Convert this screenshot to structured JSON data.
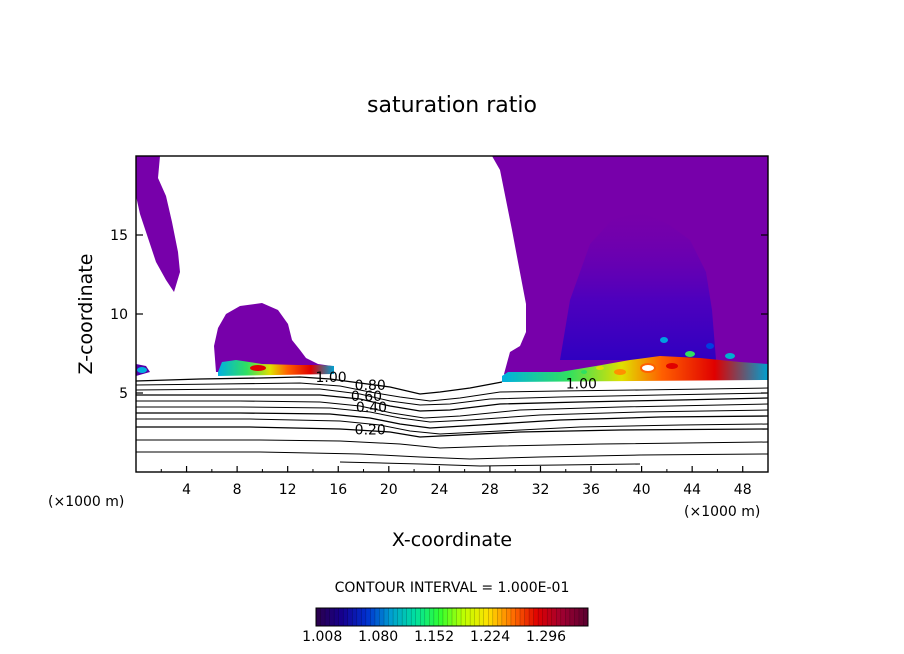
{
  "chart_data": {
    "type": "contour",
    "title": "saturation ratio",
    "xlabel": "X-coordinate",
    "ylabel": "Z-coordinate",
    "x_unit": "(×1000 m)",
    "xlim": [
      0,
      50
    ],
    "ylim": [
      0,
      20
    ],
    "x_ticks": [
      "4",
      "8",
      "12",
      "16",
      "20",
      "24",
      "28",
      "32",
      "36",
      "40",
      "44",
      "48"
    ],
    "y_ticks": [
      "5",
      "10",
      "15"
    ],
    "contour_interval_text": "CONTOUR INTERVAL = 1.000E-01",
    "contour_labels": [
      {
        "text": "1.00",
        "x": 14.2,
        "z": 6.0
      },
      {
        "text": "0.80",
        "x": 17.3,
        "z": 5.5
      },
      {
        "text": "0.60",
        "x": 17.0,
        "z": 4.8
      },
      {
        "text": "0.40",
        "x": 17.4,
        "z": 4.1
      },
      {
        "text": "0.20",
        "x": 17.3,
        "z": 2.7
      },
      {
        "text": "1.00",
        "x": 34.0,
        "z": 5.6
      }
    ],
    "colorbar": {
      "min": 1.0,
      "max": 1.35,
      "tick_labels": [
        "1.008",
        "1.080",
        "1.152",
        "1.224",
        "1.296"
      ],
      "colors": [
        "#2a0050",
        "#150090",
        "#0030d0",
        "#00a0d0",
        "#00e0a0",
        "#30ff30",
        "#c0ff00",
        "#ffe000",
        "#ff7000",
        "#e00000",
        "#a00030",
        "#600030"
      ]
    },
    "fill_color_saturated": "#7700aa",
    "grid": false
  }
}
